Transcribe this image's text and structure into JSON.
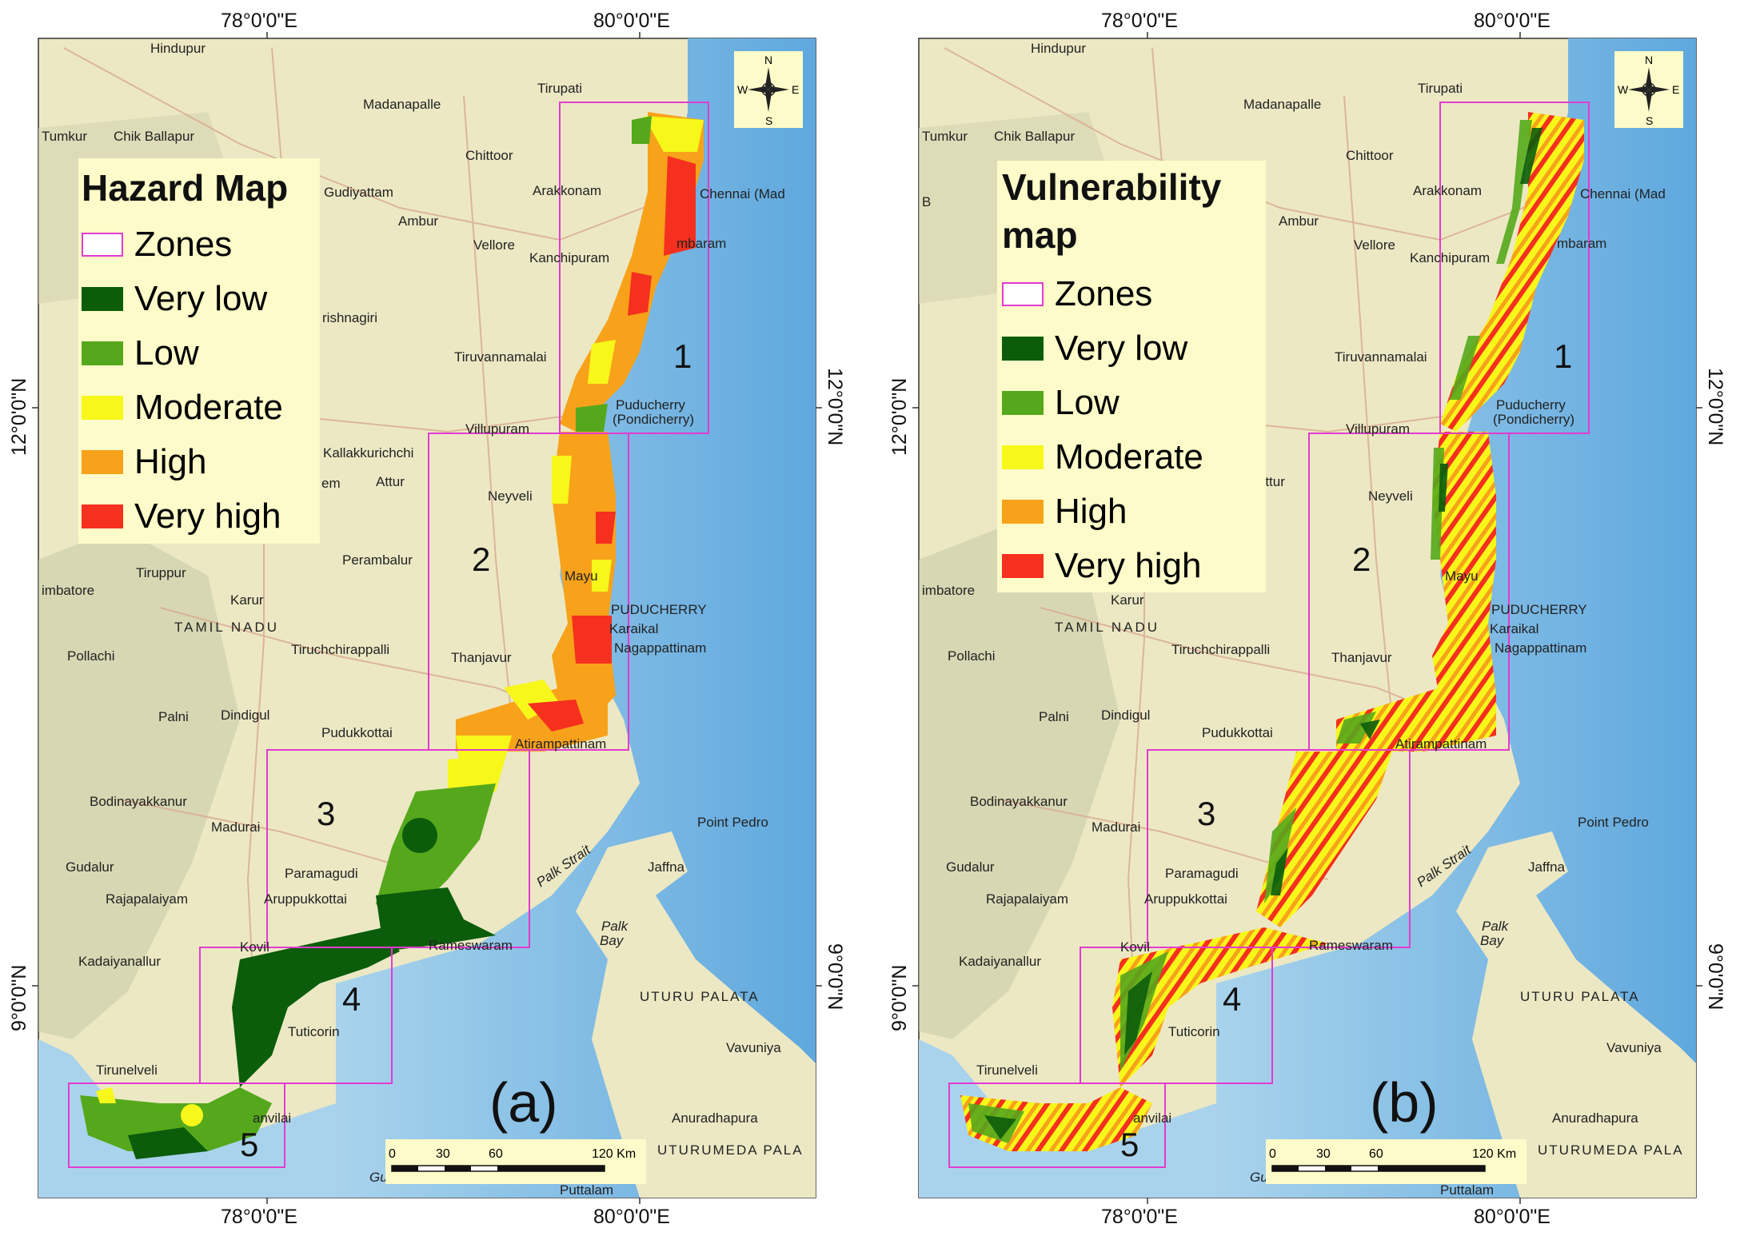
{
  "colors": {
    "very_low": "#0b5d0b",
    "low": "#55a81c",
    "moderate": "#f7f71a",
    "high": "#f7a21a",
    "very_high": "#f5301e",
    "zone_outline": "#e23bd0",
    "sea": "#a9d3ec",
    "land": "#ece8c4",
    "legend_bg": "#fdfbc9"
  },
  "axes": {
    "top_ticks": [
      "78°0'0\"E",
      "80°0'0\"E"
    ],
    "bottom_ticks": [
      "78°0'0\"E",
      "80°0'0\"E"
    ],
    "lat_ticks": [
      "12°0'0\"N",
      "9°0'0\"N"
    ]
  },
  "compass": {
    "n": "N",
    "s": "S",
    "e": "E",
    "w": "W",
    "icon": "compass-rose-icon"
  },
  "scale_bar": {
    "ticks": [
      "0",
      "30",
      "60",
      "120 Km"
    ]
  },
  "cities": {
    "hindupur": "Hindupur",
    "tirupati": "Tirupati",
    "madanapalle": "Madanapalle",
    "tumkur": "Tumkur",
    "chik_ballapur": "Chik Ballapur",
    "chittoor": "Chittoor",
    "arakkonam": "Arakkonam",
    "chennai": "Chennai (Mad",
    "gudiyattam": "Gudiyattam",
    "ambur": "Ambur",
    "vellore": "Vellore",
    "kanchipuram": "Kanchipuram",
    "chengalpattu": "mbaram",
    "krishnagiri": "rishnagiri",
    "tiruvannamalai": "Tiruvannamalai",
    "puducherry": "Puducherry",
    "pondicherry": "(Pondicherry)",
    "villupuram": "Villupuram",
    "kallakkurichchi": "Kallakkurichchi",
    "salem": "em",
    "attur": "Attur",
    "neyveli": "Neyveli",
    "perambalur": "Perambalur",
    "mayu": "Mayu",
    "coimbatore": "imbatore",
    "tiruppur": "Tiruppur",
    "karur": "Karur",
    "tamil_nadu": "TAMIL NADU",
    "tiruchchirappalli": "Tiruchchirappalli",
    "puducherry_caps": "PUDUCHERRY",
    "karaikal": "Karaikal",
    "nagappattinam": "Nagappattinam",
    "pollachi": "Pollachi",
    "thanjavur": "Thanjavur",
    "palni": "Palni",
    "dindigul": "Dindigul",
    "pudukkottai": "Pudukkottai",
    "atirampattinam": "Atirampattinam",
    "bodinayakkanur": "Bodinayakkanur",
    "madurai": "Madurai",
    "point_pedro": "Point Pedro",
    "palk_strait": "Palk Strait",
    "gudalur": "Gudalur",
    "paramagudi": "Paramagudi",
    "jaffna": "Jaffna",
    "rajapalaiyam": "Rajapalaiyam",
    "aruppukkottai": "Aruppukkottai",
    "palk_bay": "Palk",
    "palk_bay2": "Bay",
    "rameswaram": "Rameswaram",
    "kadaiyanallur": "Kadaiyanallur",
    "kovil": "Kovil",
    "uturu_palata": "UTURU PALATA",
    "tuticorin": "Tuticorin",
    "vavuniya": "Vavuniya",
    "tirunelveli": "Tirunelveli",
    "anuradhapura": "Anuradhapura",
    "nanvilai": "anvilai",
    "uturumeda_pala": "UTURUMEDA PALA",
    "gulf": "Gulf of",
    "puttalam": "Puttalam",
    "bangalore_frag": "B"
  },
  "zone_labels": [
    "1",
    "2",
    "3",
    "4",
    "5"
  ],
  "panel_a": {
    "letter": "(a)",
    "legend_title": "Hazard Map",
    "legend_items": [
      "Zones",
      "Very low",
      "Low",
      "Moderate",
      "High",
      "Very high"
    ]
  },
  "panel_b": {
    "letter": "(b)",
    "legend_title_line1": "Vulnerability",
    "legend_title_line2": "map",
    "legend_items": [
      "Zones",
      "Very low",
      "Low",
      "Moderate",
      "High",
      "Very high"
    ]
  }
}
